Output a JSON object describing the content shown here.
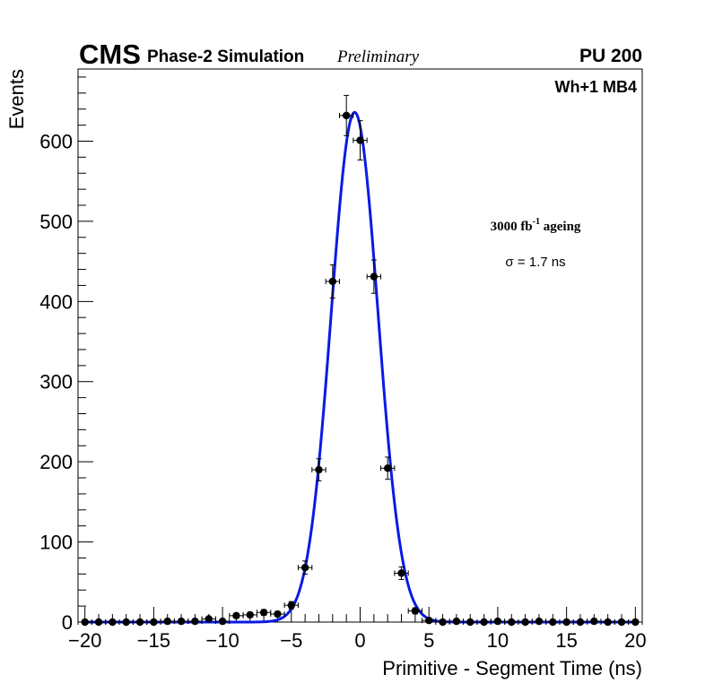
{
  "header": {
    "experiment": "CMS",
    "subtitle": "Phase-2 Simulation",
    "status": "Preliminary",
    "pileup": "PU 200"
  },
  "annotations": {
    "chamber": "Wh+1 MB4",
    "ageing_prefix": "3000 fb",
    "ageing_exp": "-1",
    "ageing_suffix": " ageing",
    "sigma": "σ = 1.7 ns"
  },
  "chart_data": {
    "type": "scatter",
    "title": "",
    "xlabel": "Primitive - Segment Time (ns)",
    "ylabel": "Events",
    "xlim": [
      -20.5,
      20.5
    ],
    "ylim": [
      0,
      690
    ],
    "x_ticks": [
      -20,
      -15,
      -10,
      -5,
      0,
      5,
      10,
      15,
      20
    ],
    "x_tick_labels": [
      "−20",
      "−15",
      "−10",
      "−5",
      "0",
      "5",
      "10",
      "15",
      "20"
    ],
    "y_ticks": [
      0,
      100,
      200,
      300,
      400,
      500,
      600
    ],
    "y_tick_labels": [
      "0",
      "100",
      "200",
      "300",
      "400",
      "500",
      "600"
    ],
    "series": [
      {
        "name": "Simulation",
        "style": "markers-with-errors",
        "x": [
          -20,
          -19,
          -18,
          -17,
          -16,
          -15,
          -14,
          -13,
          -12,
          -11,
          -10,
          -9,
          -8,
          -7,
          -6,
          -5,
          -4,
          -3,
          -2,
          -1,
          0,
          1,
          2,
          3,
          4,
          5,
          6,
          7,
          8,
          9,
          10,
          11,
          12,
          13,
          14,
          15,
          16,
          17,
          18,
          19,
          20
        ],
        "y": [
          0,
          0,
          0,
          0,
          0,
          0,
          1,
          1,
          1,
          4,
          1,
          8,
          9,
          12,
          10,
          21,
          68,
          190,
          425,
          632,
          601,
          431,
          192,
          61,
          14,
          2,
          0,
          1,
          0,
          0,
          1,
          0,
          0,
          1,
          0,
          0,
          0,
          1,
          0,
          0,
          0
        ]
      },
      {
        "name": "Gaussian fit",
        "style": "line",
        "fit": {
          "mean": -0.4,
          "sigma": 1.7,
          "amplitude": 636
        }
      }
    ],
    "colors": {
      "markers": "#000000",
      "fit": "#0a1ae6",
      "axis": "#000000"
    }
  }
}
